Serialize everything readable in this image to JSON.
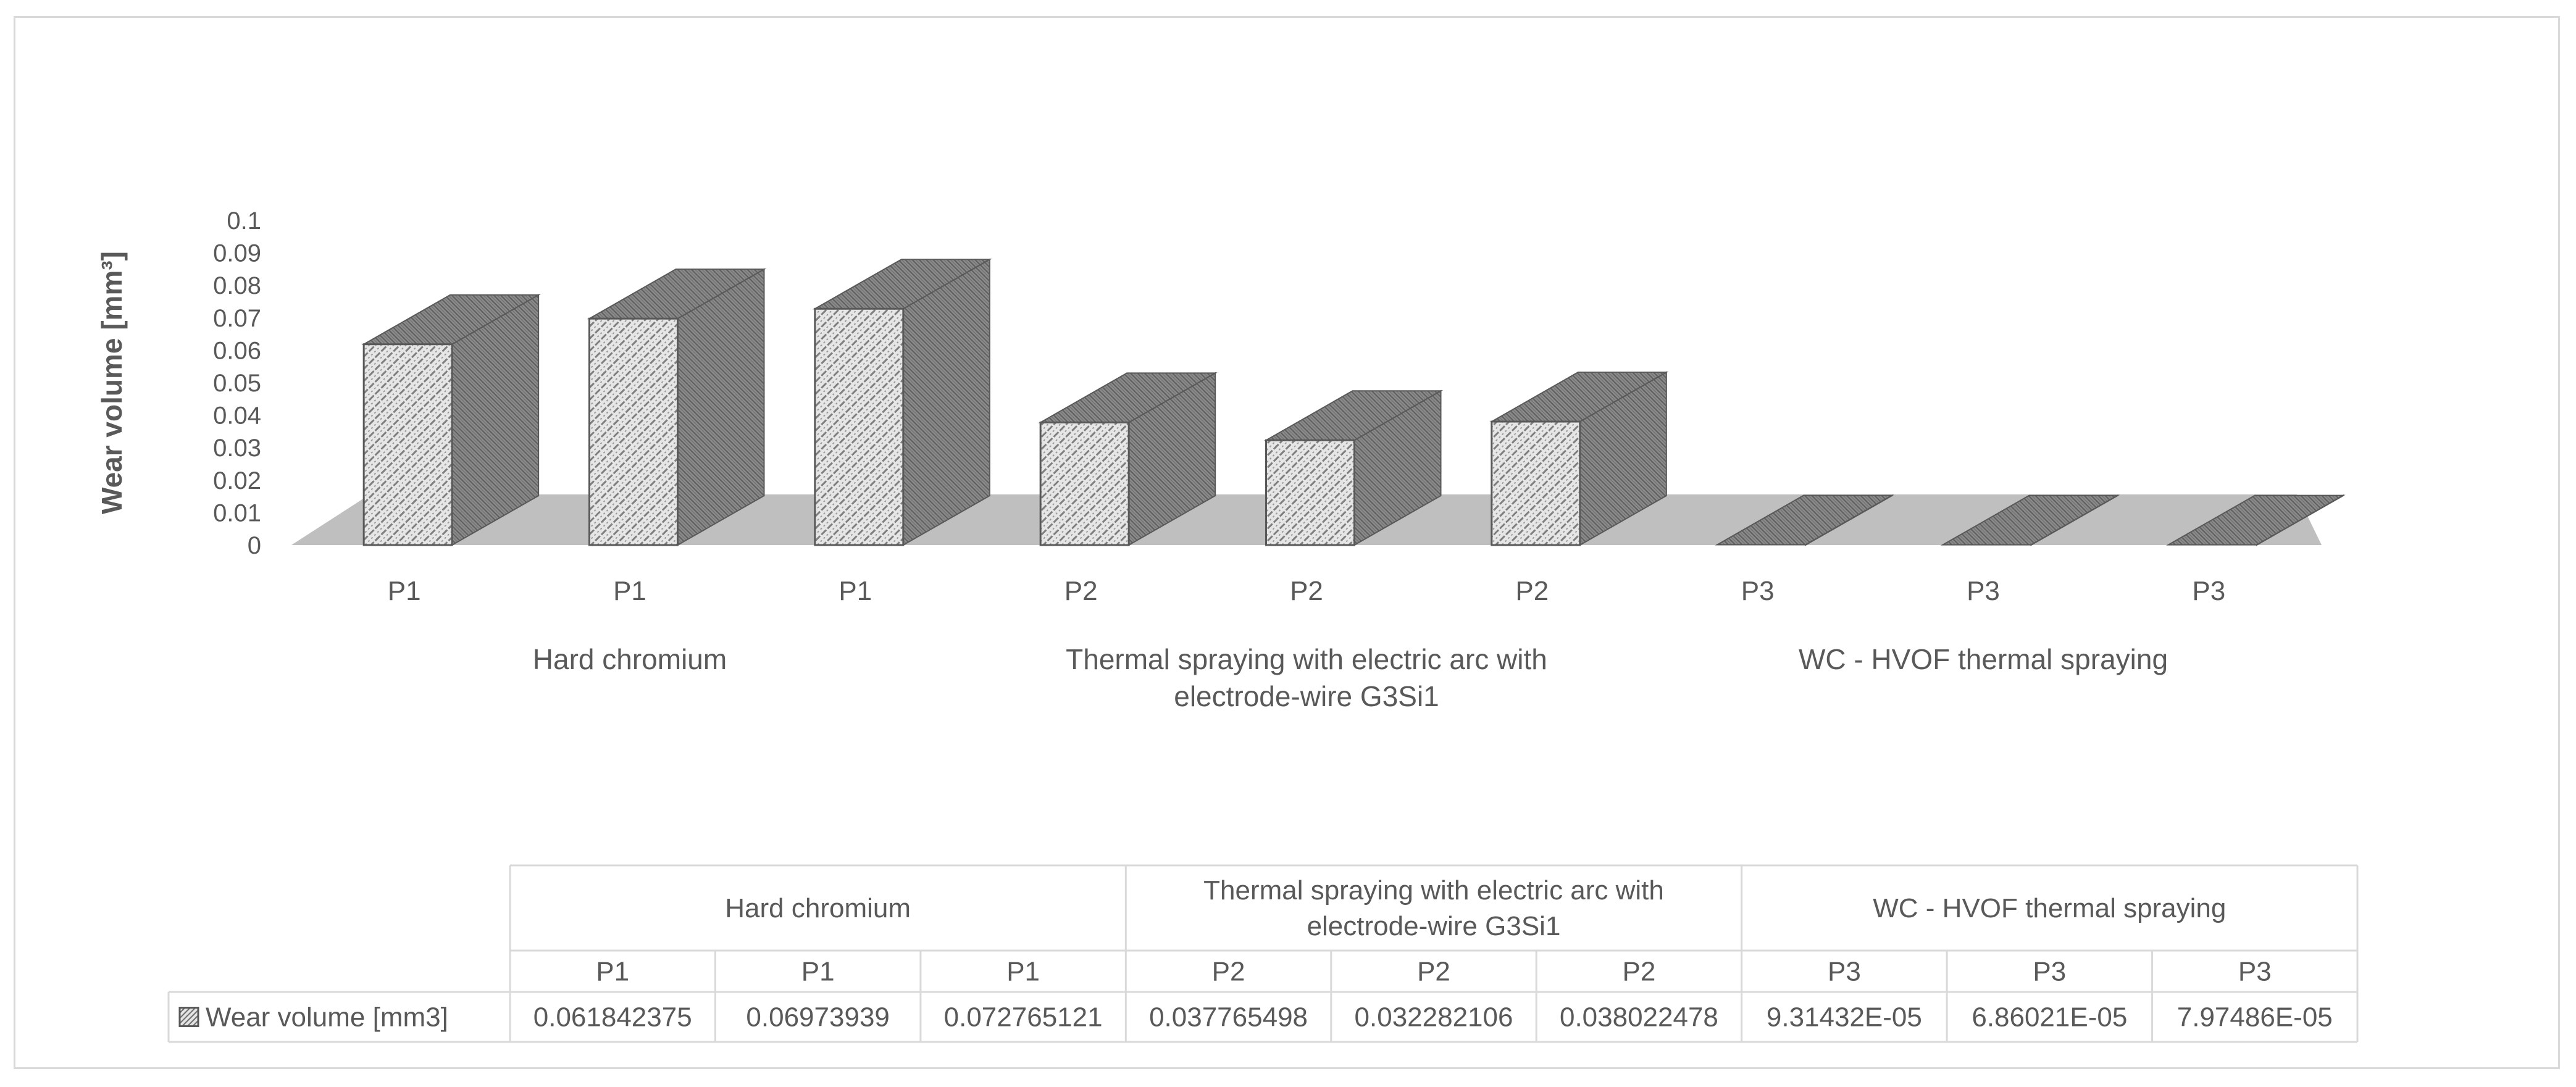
{
  "chart_data": {
    "type": "bar",
    "subtype": "3d-column",
    "title": "",
    "xlabel": "",
    "ylabel": "Wear volume [mm³]",
    "ylim": [
      0,
      0.1
    ],
    "yticks": [
      "0",
      "0.01",
      "0.02",
      "0.03",
      "0.04",
      "0.05",
      "0.06",
      "0.07",
      "0.08",
      "0.09",
      "0.1"
    ],
    "groups": [
      {
        "label": "Hard chromium",
        "label_lines": [
          "Hard chromium"
        ],
        "count": 3
      },
      {
        "label": "Thermal spraying with electric arc with electrode-wire G3Si1",
        "label_lines": [
          "Thermal spraying with electric arc with",
          "electrode-wire G3Si1"
        ],
        "count": 3
      },
      {
        "label": "WC - HVOF thermal spraying",
        "label_lines": [
          "WC - HVOF thermal spraying"
        ],
        "count": 3
      }
    ],
    "categories": [
      "P1",
      "P1",
      "P1",
      "P2",
      "P2",
      "P2",
      "P3",
      "P3",
      "P3"
    ],
    "series": [
      {
        "name": "Wear volume [mm3]",
        "values": [
          0.061842375,
          0.06973939,
          0.072765121,
          0.037765498,
          0.032282106,
          0.038022478,
          9.31432e-05,
          6.86021e-05,
          7.97486e-05
        ],
        "value_labels": [
          "0.061842375",
          "0.06973939",
          "0.072765121",
          "0.037765498",
          "0.032282106",
          "0.038022478",
          "9.31432E-05",
          "6.86021E-05",
          "7.97486E-05"
        ]
      }
    ],
    "data_table": true,
    "grid": false,
    "colors": {
      "floor": "#bfbfbf",
      "bar_front": "#e4e4e4",
      "bar_hatch": "#7f7f7f",
      "bar_dark": "#7a7a7a",
      "bar_edge": "#595959",
      "text": "#595959",
      "table_border": "#d9d9d9"
    }
  }
}
